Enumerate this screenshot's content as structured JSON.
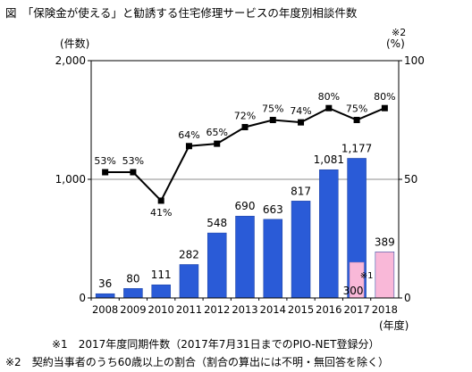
{
  "figure": {
    "title": "図　「保険金が使える」と勧誘する住宅修理サービスの年度別相談件数",
    "left_axis_unit": "(件数)",
    "right_axis_unit": "(%)",
    "right_axis_note_marker": "※2",
    "x_axis_unit": "(年度)",
    "notes": [
      "※1　2017年度同期件数（2017年7月31日までのPIO-NET登録分）",
      "※2　契約当事者のうち60歳以上の割合（割合の算出には不明・無回答を除く）"
    ]
  },
  "chart_data": {
    "type": "bar",
    "categories": [
      "2008",
      "2009",
      "2010",
      "2011",
      "2012",
      "2013",
      "2014",
      "2015",
      "2016",
      "2017",
      "2018"
    ],
    "bar_values": [
      36,
      80,
      111,
      282,
      548,
      690,
      663,
      817,
      1081,
      1177,
      389
    ],
    "bar_labels": [
      "36",
      "80",
      "111",
      "282",
      "548",
      "690",
      "663",
      "817",
      "1,081",
      "1,177",
      "389"
    ],
    "bar_colors": [
      "#2a5bd7",
      "#2a5bd7",
      "#2a5bd7",
      "#2a5bd7",
      "#2a5bd7",
      "#2a5bd7",
      "#2a5bd7",
      "#2a5bd7",
      "#2a5bd7",
      "#2a5bd7",
      "#f9b8d8"
    ],
    "overlay_bar": {
      "category": "2017",
      "value": 300,
      "label": "300",
      "marker": "※1",
      "color": "#f9b8d8"
    },
    "line_values": [
      53,
      53,
      41,
      64,
      65,
      72,
      75,
      74,
      80,
      75,
      80
    ],
    "line_labels": [
      "53%",
      "53%",
      "41%",
      "64%",
      "65%",
      "72%",
      "75%",
      "74%",
      "80%",
      "75%",
      "80%"
    ],
    "left_axis": {
      "ylim": [
        0,
        2000
      ],
      "ticks": [
        "0",
        "1,000",
        "2,000"
      ]
    },
    "right_axis": {
      "ylim": [
        0,
        100
      ],
      "ticks": [
        "0",
        "50",
        "100"
      ]
    },
    "gridlines": [
      1000
    ],
    "colors": {
      "bar": "#2a5bd7",
      "pink_bar": "#f9b8d8",
      "line": "#000000"
    }
  }
}
